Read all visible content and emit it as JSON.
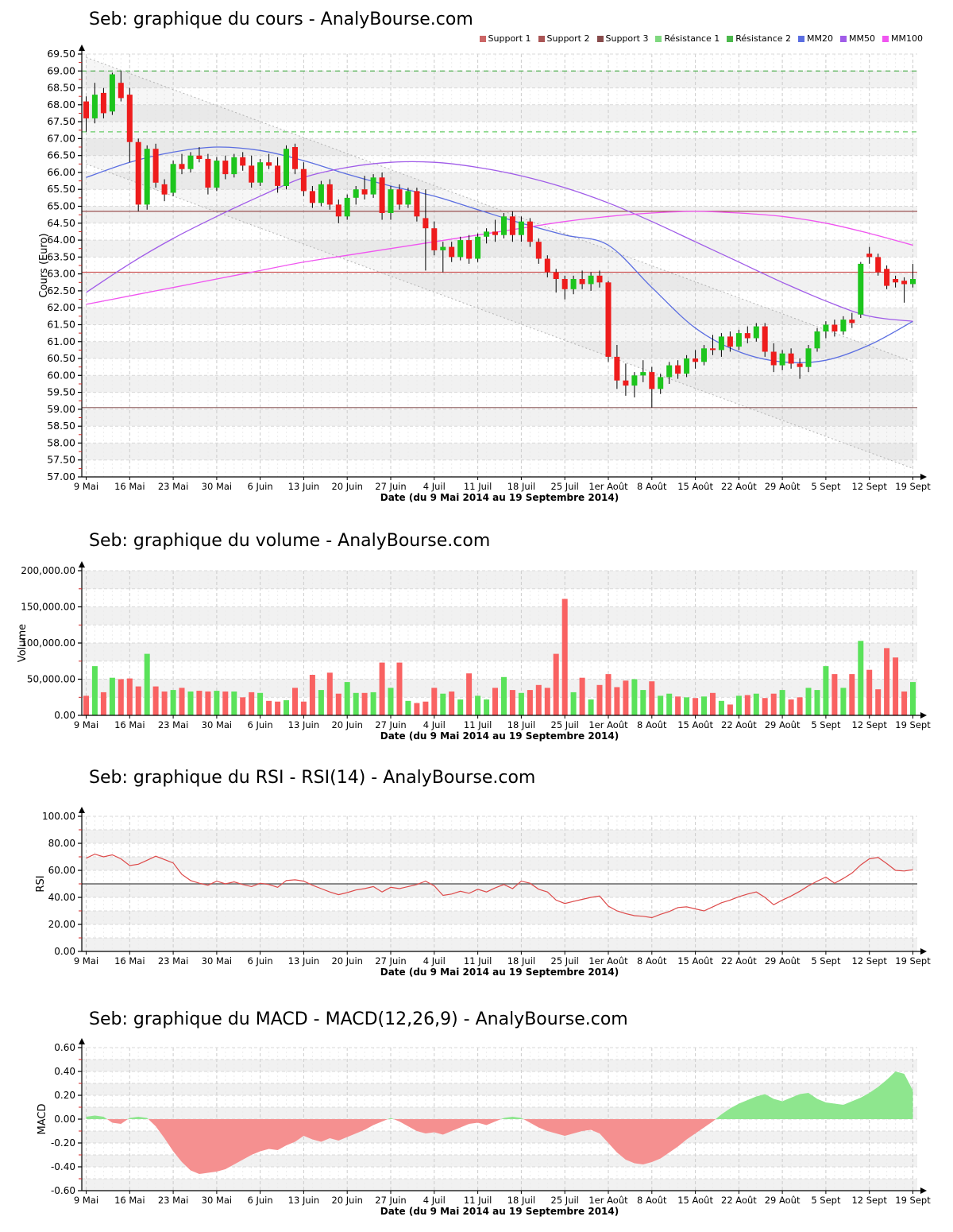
{
  "chart_data": [
    {
      "id": "price",
      "type": "candlestick",
      "title": "Seb: graphique du cours - AnalyBourse.com",
      "ylabel": "Cours (Euro)",
      "xlabel": "Date (du 9 Mai 2014 au 19 Septembre 2014)",
      "ylim": [
        57,
        69.5
      ],
      "y_major": 0.5,
      "y_minor": 0.25,
      "y_band": 0.5,
      "gray_first": false,
      "yfmt": "plain",
      "x_tick_every": 5,
      "x_tick_labels": [
        "9 Mai",
        "16 Mai",
        "23 Mai",
        "30 Mai",
        "6 Juin",
        "13 Juin",
        "20 Juin",
        "27 Juin",
        "4 Juil",
        "11 Juil",
        "18 Juil",
        "25 Juil",
        "1er Août",
        "8 Août",
        "15 Août",
        "22 Août",
        "29 Août",
        "5 Sept",
        "12 Sept",
        "19 Sept"
      ],
      "up_color": "#1dc51d",
      "down_color": "#ee1c1c",
      "legend": [
        {
          "label": "Support 1",
          "color": "#cc6666"
        },
        {
          "label": "Support 2",
          "color": "#aa5555"
        },
        {
          "label": "Support 3",
          "color": "#884c4c"
        },
        {
          "label": "Résistance 1",
          "color": "#7fd87f"
        },
        {
          "label": "Résistance 2",
          "color": "#4cb84c"
        },
        {
          "label": "MM20",
          "color": "#5b6ee1"
        },
        {
          "label": "MM50",
          "color": "#a05ce8"
        },
        {
          "label": "MM100",
          "color": "#f055f0"
        }
      ],
      "levels": [
        {
          "name": "Support 1",
          "value": 63.05,
          "color": "#cc5555",
          "dash": false
        },
        {
          "name": "Support 2",
          "value": 64.85,
          "color": "#995050",
          "dash": false
        },
        {
          "name": "Support 3",
          "value": 59.05,
          "color": "#8a5959",
          "dash": false
        },
        {
          "name": "Résistance 1",
          "value": 67.2,
          "color": "#66cc66",
          "dash": true
        },
        {
          "name": "Résistance 2",
          "value": 69.0,
          "color": "#44aa44",
          "dash": true
        }
      ],
      "channel": {
        "upper_start": 69.4,
        "upper_end": 60.4,
        "lower_start": 66.25,
        "lower_end": 57.25,
        "color": "#b3b3b3"
      },
      "moving_averages": [
        {
          "name": "MM20",
          "color": "#5b6ee1",
          "values": [
            65.85,
            66.3,
            66.6,
            66.75,
            66.65,
            66.35,
            65.95,
            65.6,
            65.3,
            64.9,
            64.5,
            64.15,
            63.85,
            62.6,
            61.4,
            60.7,
            60.4,
            60.45,
            60.9,
            61.6
          ]
        },
        {
          "name": "MM50",
          "color": "#a05ce8",
          "values": [
            62.45,
            63.3,
            64.05,
            64.7,
            65.3,
            65.85,
            66.15,
            66.3,
            66.3,
            66.15,
            65.9,
            65.55,
            65.1,
            64.55,
            63.95,
            63.35,
            62.75,
            62.2,
            61.75,
            61.6
          ]
        },
        {
          "name": "MM100",
          "color": "#f055f0",
          "values": [
            62.1,
            62.35,
            62.6,
            62.85,
            63.1,
            63.35,
            63.55,
            63.75,
            63.95,
            64.15,
            64.35,
            64.55,
            64.7,
            64.8,
            64.85,
            64.8,
            64.7,
            64.5,
            64.2,
            63.85
          ]
        }
      ],
      "ohlc": [
        [
          68.1,
          68.25,
          67.2,
          67.6
        ],
        [
          67.6,
          68.65,
          67.45,
          68.3
        ],
        [
          68.35,
          68.5,
          67.6,
          67.75
        ],
        [
          67.8,
          68.95,
          67.7,
          68.9
        ],
        [
          68.65,
          69.0,
          68.1,
          68.2
        ],
        [
          68.3,
          68.5,
          66.3,
          66.9
        ],
        [
          66.9,
          67.0,
          64.85,
          65.05
        ],
        [
          65.05,
          66.8,
          64.9,
          66.7
        ],
        [
          66.7,
          66.85,
          65.55,
          65.7
        ],
        [
          65.65,
          65.8,
          65.15,
          65.35
        ],
        [
          65.4,
          66.35,
          65.3,
          66.25
        ],
        [
          66.25,
          66.55,
          65.95,
          66.1
        ],
        [
          66.1,
          66.6,
          66.0,
          66.5
        ],
        [
          66.5,
          66.75,
          66.3,
          66.4
        ],
        [
          66.4,
          66.55,
          65.35,
          65.55
        ],
        [
          65.55,
          66.45,
          65.45,
          66.35
        ],
        [
          66.35,
          66.5,
          65.8,
          65.95
        ],
        [
          65.95,
          66.55,
          65.85,
          66.45
        ],
        [
          66.45,
          66.6,
          66.05,
          66.2
        ],
        [
          66.2,
          66.5,
          65.55,
          65.7
        ],
        [
          65.7,
          66.4,
          65.6,
          66.3
        ],
        [
          66.3,
          66.55,
          66.1,
          66.2
        ],
        [
          66.2,
          66.45,
          65.4,
          65.6
        ],
        [
          65.6,
          66.8,
          65.5,
          66.7
        ],
        [
          66.75,
          66.85,
          65.95,
          66.1
        ],
        [
          66.1,
          66.3,
          65.3,
          65.45
        ],
        [
          65.45,
          65.6,
          64.95,
          65.1
        ],
        [
          65.1,
          65.75,
          65.0,
          65.65
        ],
        [
          65.65,
          65.8,
          64.9,
          65.05
        ],
        [
          65.05,
          65.2,
          64.5,
          64.7
        ],
        [
          64.7,
          65.35,
          64.6,
          65.25
        ],
        [
          65.25,
          65.6,
          65.05,
          65.5
        ],
        [
          65.5,
          65.9,
          65.2,
          65.35
        ],
        [
          65.35,
          65.95,
          65.25,
          65.85
        ],
        [
          65.85,
          66.0,
          64.6,
          64.8
        ],
        [
          64.8,
          65.6,
          64.6,
          65.5
        ],
        [
          65.5,
          65.65,
          64.9,
          65.05
        ],
        [
          65.05,
          65.55,
          64.95,
          65.45
        ],
        [
          65.45,
          65.55,
          64.55,
          64.7
        ],
        [
          64.65,
          65.5,
          63.1,
          64.35
        ],
        [
          64.35,
          64.55,
          63.55,
          63.7
        ],
        [
          63.7,
          63.95,
          63.05,
          63.8
        ],
        [
          63.8,
          63.95,
          63.35,
          63.5
        ],
        [
          63.5,
          64.1,
          63.4,
          64.0
        ],
        [
          64.0,
          64.15,
          63.3,
          63.45
        ],
        [
          63.45,
          64.2,
          63.35,
          64.1
        ],
        [
          64.1,
          64.35,
          63.9,
          64.25
        ],
        [
          64.25,
          64.6,
          63.95,
          64.15
        ],
        [
          64.15,
          64.8,
          64.05,
          64.7
        ],
        [
          64.7,
          64.85,
          63.95,
          64.15
        ],
        [
          64.15,
          64.7,
          63.95,
          64.55
        ],
        [
          64.55,
          64.65,
          63.8,
          63.95
        ],
        [
          63.95,
          64.05,
          63.3,
          63.45
        ],
        [
          63.45,
          63.55,
          62.9,
          63.05
        ],
        [
          63.05,
          63.15,
          62.45,
          62.85
        ],
        [
          62.85,
          62.95,
          62.25,
          62.55
        ],
        [
          62.55,
          62.95,
          62.4,
          62.85
        ],
        [
          62.85,
          63.1,
          62.55,
          62.7
        ],
        [
          62.7,
          63.05,
          62.5,
          62.95
        ],
        [
          62.95,
          63.1,
          62.6,
          62.75
        ],
        [
          62.75,
          62.8,
          60.4,
          60.55
        ],
        [
          60.55,
          60.9,
          59.6,
          59.85
        ],
        [
          59.85,
          60.35,
          59.4,
          59.7
        ],
        [
          59.7,
          60.1,
          59.35,
          60.0
        ],
        [
          60.0,
          60.45,
          59.8,
          60.1
        ],
        [
          60.1,
          60.25,
          59.05,
          59.6
        ],
        [
          59.6,
          60.05,
          59.45,
          59.95
        ],
        [
          59.95,
          60.4,
          59.75,
          60.3
        ],
        [
          60.3,
          60.45,
          59.9,
          60.05
        ],
        [
          60.05,
          60.6,
          59.95,
          60.5
        ],
        [
          60.5,
          60.75,
          60.2,
          60.4
        ],
        [
          60.4,
          60.9,
          60.3,
          60.8
        ],
        [
          60.8,
          61.2,
          60.6,
          60.75
        ],
        [
          60.75,
          61.25,
          60.55,
          61.15
        ],
        [
          61.15,
          61.3,
          60.7,
          60.85
        ],
        [
          60.85,
          61.35,
          60.75,
          61.25
        ],
        [
          61.25,
          61.45,
          60.95,
          61.1
        ],
        [
          61.1,
          61.55,
          61.0,
          61.45
        ],
        [
          61.45,
          61.55,
          60.55,
          60.7
        ],
        [
          60.7,
          60.95,
          60.1,
          60.3
        ],
        [
          60.3,
          60.75,
          60.15,
          60.65
        ],
        [
          60.65,
          60.8,
          60.2,
          60.35
        ],
        [
          60.35,
          60.5,
          59.9,
          60.25
        ],
        [
          60.25,
          60.9,
          60.1,
          60.8
        ],
        [
          60.8,
          61.4,
          60.7,
          61.3
        ],
        [
          61.3,
          61.6,
          61.1,
          61.5
        ],
        [
          61.5,
          61.65,
          61.15,
          61.3
        ],
        [
          61.3,
          61.75,
          61.2,
          61.65
        ],
        [
          61.65,
          61.85,
          61.4,
          61.55
        ],
        [
          61.8,
          63.35,
          61.7,
          63.3
        ],
        [
          63.6,
          63.8,
          63.3,
          63.5
        ],
        [
          63.5,
          63.6,
          62.95,
          63.05
        ],
        [
          63.15,
          63.25,
          62.55,
          62.65
        ],
        [
          62.85,
          62.95,
          62.6,
          62.75
        ],
        [
          62.8,
          62.9,
          62.15,
          62.7
        ],
        [
          62.7,
          63.3,
          62.6,
          62.85
        ]
      ]
    },
    {
      "id": "volume",
      "type": "bar",
      "title": "Seb: graphique du volume - AnalyBourse.com",
      "ylabel": "Volume",
      "xlabel": "Date (du 9 Mai 2014 au 19 Septembre 2014)",
      "ylim": [
        0,
        200000
      ],
      "y_major": 50000,
      "y_minor": 25000,
      "y_band": 25000,
      "gray_first": true,
      "yfmt": "thousands",
      "x_tick_every": 5,
      "x_tick_labels": [
        "9 Mai",
        "16 Mai",
        "23 Mai",
        "30 Mai",
        "6 Juin",
        "13 Juin",
        "20 Juin",
        "27 Juin",
        "4 Juil",
        "11 Juil",
        "18 Juil",
        "25 Juil",
        "1er Août",
        "8 Août",
        "15 Août",
        "22 Août",
        "29 Août",
        "5 Sept",
        "12 Sept",
        "19 Sept"
      ],
      "up_color": "#5ae25a",
      "down_color": "#f96262",
      "values": [
        27000,
        68000,
        32000,
        52000,
        50000,
        51000,
        40000,
        85000,
        40000,
        33000,
        35000,
        38000,
        33000,
        34000,
        33000,
        34000,
        33000,
        33000,
        25000,
        32000,
        31000,
        20000,
        19000,
        21000,
        38000,
        19000,
        56000,
        35000,
        59000,
        30000,
        46000,
        31000,
        31000,
        32000,
        73000,
        38000,
        73000,
        20000,
        17000,
        19000,
        38000,
        30000,
        33000,
        22000,
        58000,
        27000,
        22000,
        38000,
        53000,
        35000,
        31000,
        35000,
        42000,
        38000,
        85000,
        161000,
        32000,
        52000,
        22000,
        42000,
        57000,
        39000,
        48000,
        50000,
        35000,
        47000,
        27000,
        30000,
        26000,
        25000,
        24000,
        26000,
        31000,
        20000,
        15000,
        27000,
        28000,
        30000,
        24000,
        30000,
        35000,
        22000,
        25000,
        38000,
        35000,
        68000,
        57000,
        38000,
        57000,
        103000,
        63000,
        36000,
        93000,
        80000,
        33000,
        46000
      ]
    },
    {
      "id": "rsi",
      "type": "line",
      "title": "Seb: graphique du RSI - RSI(14) - AnalyBourse.com",
      "ylabel": "RSI",
      "xlabel": "Date (du 9 Mai 2014 au 19 Septembre 2014)",
      "ylim": [
        0,
        100
      ],
      "y_major": 20,
      "y_minor": 10,
      "y_band": 10,
      "gray_first": false,
      "yfmt": "plain",
      "x_tick_every": 5,
      "x_tick_labels": [
        "9 Mai",
        "16 Mai",
        "23 Mai",
        "30 Mai",
        "6 Juin",
        "13 Juin",
        "20 Juin",
        "27 Juin",
        "4 Juil",
        "11 Juil",
        "18 Juil",
        "25 Juil",
        "1er Août",
        "8 Août",
        "15 Août",
        "22 Août",
        "29 Août",
        "5 Sept",
        "12 Sept",
        "19 Sept"
      ],
      "line_color": "#dd4a4a",
      "midline": 50,
      "values": [
        69,
        72,
        70,
        71.5,
        68.5,
        63.5,
        64.5,
        67.5,
        70.5,
        68,
        65.5,
        57,
        52.5,
        50.5,
        49,
        52,
        50,
        51.5,
        49.5,
        48,
        50.5,
        49.5,
        47.5,
        52.5,
        53,
        52,
        49,
        46.5,
        44,
        42,
        43.5,
        45.5,
        46.5,
        48,
        44,
        47.5,
        46.5,
        48,
        49.5,
        52,
        48.5,
        41.5,
        42.5,
        44.5,
        43,
        46,
        44,
        47,
        49.5,
        46.5,
        52,
        50.5,
        46,
        44,
        38,
        35.5,
        37,
        38.5,
        40,
        41,
        33.5,
        30,
        28,
        26.5,
        26,
        25,
        27.5,
        29.5,
        32.5,
        33,
        31.5,
        30,
        33,
        36,
        38,
        40.5,
        42.5,
        44,
        40,
        34.5,
        38,
        41,
        44.5,
        48.5,
        52,
        55,
        50.5,
        54,
        58,
        64,
        68.5,
        69.5,
        65,
        60,
        59.5,
        60.5
      ]
    },
    {
      "id": "macd",
      "type": "area",
      "title": "Seb: graphique du MACD - MACD(12,26,9) - AnalyBourse.com",
      "ylabel": "MACD",
      "xlabel": "Date (du 9 Mai 2014 au 19 Septembre 2014)",
      "ylim": [
        -0.6,
        0.6
      ],
      "y_major": 0.2,
      "y_minor": 0.1,
      "y_band": 0.1,
      "gray_first": false,
      "yfmt": "plain",
      "x_tick_every": 5,
      "x_tick_labels": [
        "9 Mai",
        "16 Mai",
        "23 Mai",
        "30 Mai",
        "6 Juin",
        "13 Juin",
        "20 Juin",
        "27 Juin",
        "4 Juil",
        "11 Juil",
        "18 Juil",
        "25 Juil",
        "1er Août",
        "8 Août",
        "15 Août",
        "22 Août",
        "29 Août",
        "5 Sept",
        "12 Sept",
        "19 Sept"
      ],
      "pos_color": "#8ee68e",
      "neg_color": "#f59090",
      "values": [
        0.02,
        0.03,
        0.02,
        -0.03,
        -0.04,
        0.01,
        0.02,
        0.01,
        -0.06,
        -0.16,
        -0.27,
        -0.36,
        -0.43,
        -0.46,
        -0.45,
        -0.44,
        -0.42,
        -0.38,
        -0.34,
        -0.3,
        -0.27,
        -0.25,
        -0.26,
        -0.22,
        -0.19,
        -0.14,
        -0.17,
        -0.19,
        -0.16,
        -0.18,
        -0.15,
        -0.12,
        -0.09,
        -0.05,
        -0.02,
        0.01,
        -0.02,
        -0.06,
        -0.1,
        -0.12,
        -0.11,
        -0.13,
        -0.1,
        -0.07,
        -0.04,
        -0.03,
        -0.05,
        -0.02,
        0.01,
        0.02,
        0.01,
        -0.03,
        -0.07,
        -0.1,
        -0.12,
        -0.14,
        -0.12,
        -0.1,
        -0.09,
        -0.12,
        -0.2,
        -0.28,
        -0.34,
        -0.37,
        -0.38,
        -0.36,
        -0.33,
        -0.28,
        -0.23,
        -0.17,
        -0.12,
        -0.07,
        -0.02,
        0.04,
        0.09,
        0.13,
        0.16,
        0.19,
        0.21,
        0.17,
        0.15,
        0.18,
        0.21,
        0.22,
        0.17,
        0.14,
        0.13,
        0.12,
        0.15,
        0.18,
        0.22,
        0.27,
        0.33,
        0.4,
        0.38,
        0.24
      ]
    }
  ]
}
